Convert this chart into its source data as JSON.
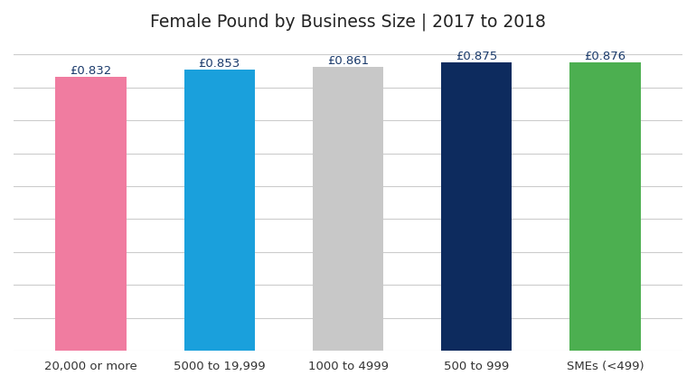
{
  "title": "Female Pound by Business Size | 2017 to 2018",
  "categories": [
    "20,000 or more",
    "5000 to 19,999",
    "1000 to 4999",
    "500 to 999",
    "SMEs (<499)"
  ],
  "values": [
    0.832,
    0.853,
    0.861,
    0.875,
    0.876
  ],
  "bar_colors": [
    "#F07CA0",
    "#1AA0DC",
    "#C8C8C8",
    "#0D2B5E",
    "#4CAF50"
  ],
  "labels": [
    "£0.832",
    "£0.853",
    "£0.861",
    "£0.875",
    "£0.876"
  ],
  "label_color": "#1A3A6B",
  "ylim_min": 0.0,
  "ylim_max": 0.94,
  "background_color": "#FFFFFF",
  "grid_color": "#CCCCCC",
  "title_fontsize": 13.5,
  "tick_fontsize": 9.5,
  "label_fontsize": 9.5,
  "grid_interval": 0.1
}
